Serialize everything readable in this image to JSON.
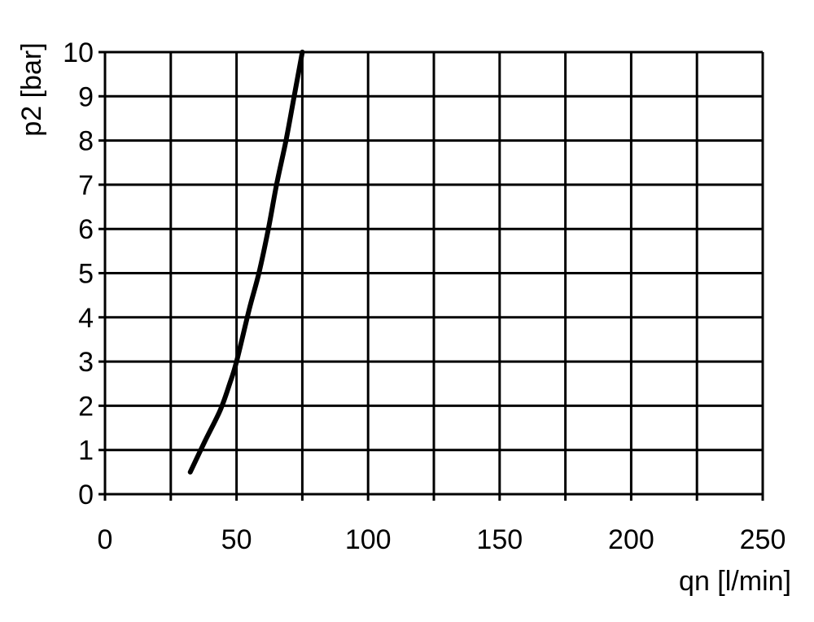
{
  "chart_data": {
    "type": "line",
    "title": "",
    "xlabel": "qn [l/min]",
    "ylabel": "p2 [bar]",
    "xlim": [
      0,
      250
    ],
    "ylim": [
      0,
      10
    ],
    "x_ticks": [
      0,
      50,
      100,
      150,
      200,
      250
    ],
    "x_tick_labels": [
      "0",
      "50",
      "100",
      "150",
      "200",
      "250"
    ],
    "x_grid": [
      0,
      25,
      50,
      75,
      100,
      125,
      150,
      175,
      200,
      225,
      250
    ],
    "y_ticks": [
      0,
      1,
      2,
      3,
      4,
      5,
      6,
      7,
      8,
      9,
      10
    ],
    "y_tick_labels": [
      "0",
      "1",
      "2",
      "3",
      "4",
      "5",
      "6",
      "7",
      "8",
      "9",
      "10"
    ],
    "grid": true,
    "line_color": "#000000",
    "series": [
      {
        "x": [
          32.4,
          38,
          43.8,
          47.4,
          50,
          54.9,
          58.5,
          62.1,
          65.2,
          68.8,
          71.9,
          75
        ],
        "y": [
          0.5,
          1.2,
          1.9,
          2.5,
          3.0,
          4.2,
          5.0,
          6.0,
          7.0,
          8.0,
          9.0,
          10.0
        ]
      }
    ]
  }
}
